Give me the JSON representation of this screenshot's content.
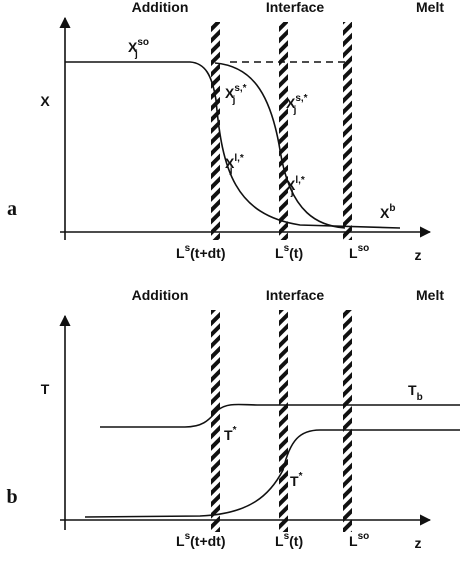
{
  "panel_a": {
    "tag": "a",
    "zones": [
      "Addition",
      "Interface",
      "Melt"
    ],
    "y_label": "X",
    "z_label": "z",
    "x_so": {
      "base": "X",
      "sub": "j",
      "sup": "so"
    },
    "x_s_star": {
      "base": "X",
      "sub": "j",
      "sup": "s,*"
    },
    "x_l_star_left": {
      "base": "X",
      "sub": "j",
      "sup": "l,*"
    },
    "x_l_star_right": {
      "base": "X",
      "sub": "j",
      "sup": "l,*"
    },
    "x_b": {
      "base": "X",
      "sup": "b"
    },
    "walls": [
      {
        "base": "L",
        "sup": "s",
        "rest": "(t+dt)"
      },
      {
        "base": "L",
        "sup": "s",
        "rest": "(t)"
      },
      {
        "base": "L",
        "sup": "so"
      }
    ]
  },
  "panel_b": {
    "tag": "b",
    "zones": [
      "Addition",
      "Interface",
      "Melt"
    ],
    "y_label": "T",
    "z_label": "z",
    "t_b": {
      "base": "T",
      "sub": "b"
    },
    "t_star_left": {
      "base": "T",
      "sup": "*"
    },
    "t_star_right": {
      "base": "T",
      "sup": "*"
    },
    "walls": [
      {
        "base": "L",
        "sup": "s",
        "rest": "(t+dt)"
      },
      {
        "base": "L",
        "sup": "s",
        "rest": "(t)"
      },
      {
        "base": "L",
        "sup": "so"
      }
    ]
  }
}
